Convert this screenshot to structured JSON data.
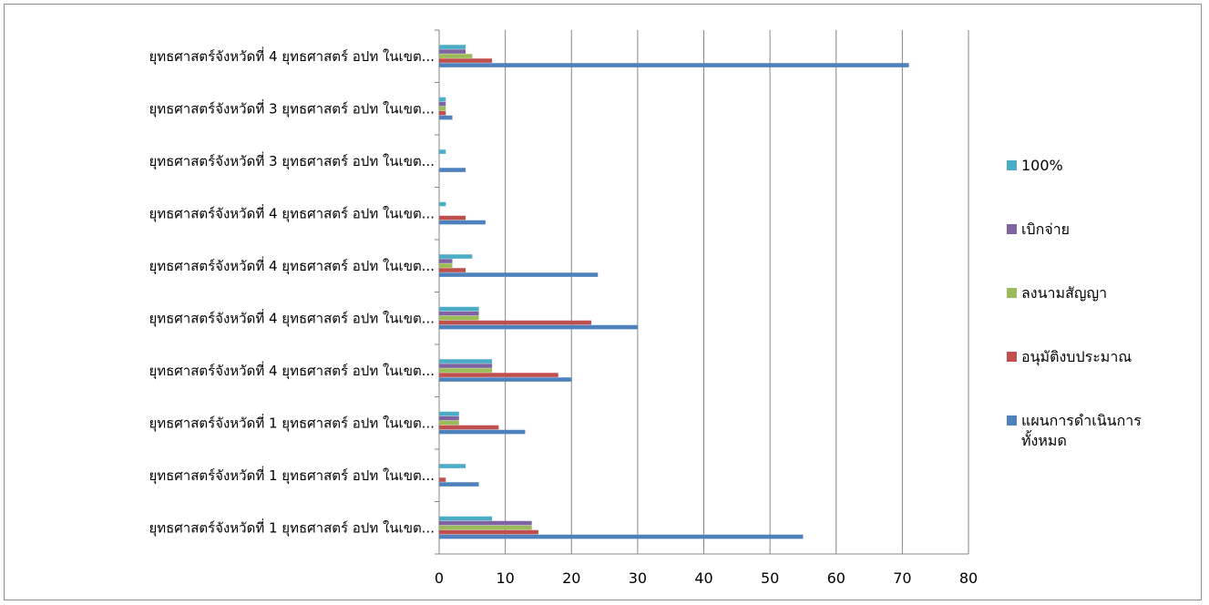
{
  "chart_data": {
    "type": "bar",
    "orientation": "horizontal",
    "categories": [
      "ยุทธศาสตร์จังหวัดที่ 4 ยุทธศาสตร์ อปท ในเขต...",
      "ยุทธศาสตร์จังหวัดที่ 3 ยุทธศาสตร์ อปท ในเขต...",
      "ยุทธศาสตร์จังหวัดที่ 3 ยุทธศาสตร์ อปท ในเขต...",
      "ยุทธศาสตร์จังหวัดที่ 4 ยุทธศาสตร์ อปท ในเขต...",
      "ยุทธศาสตร์จังหวัดที่ 4 ยุทธศาสตร์ อปท ในเขต...",
      "ยุทธศาสตร์จังหวัดที่ 4 ยุทธศาสตร์ อปท ในเขต...",
      "ยุทธศาสตร์จังหวัดที่ 4 ยุทธศาสตร์ อปท ในเขต...",
      "ยุทธศาสตร์จังหวัดที่ 1 ยุทธศาสตร์ อปท ในเขต...",
      "ยุทธศาสตร์จังหวัดที่ 1 ยุทธศาสตร์ อปท ในเขต...",
      "ยุทธศาสตร์จังหวัดที่ 1 ยุทธศาสตร์ อปท ในเขต..."
    ],
    "series": [
      {
        "name": "แผนการดำเนินการทั้งหมด",
        "color": "#4f81bd",
        "values": [
          71,
          2,
          4,
          7,
          24,
          30,
          20,
          13,
          6,
          55
        ]
      },
      {
        "name": "อนุมัติงบประมาณ",
        "color": "#c0504d",
        "values": [
          8,
          1,
          0,
          4,
          4,
          23,
          18,
          9,
          1,
          15
        ]
      },
      {
        "name": "ลงนามสัญญา",
        "color": "#9bbb59",
        "values": [
          5,
          1,
          0,
          0,
          2,
          6,
          8,
          3,
          0,
          14
        ]
      },
      {
        "name": "เบิกจ่าย",
        "color": "#8064a2",
        "values": [
          4,
          1,
          0,
          0,
          2,
          6,
          8,
          3,
          0,
          14
        ]
      },
      {
        "name": "100%",
        "color": "#4bacc6",
        "values": [
          4,
          1,
          1,
          1,
          5,
          6,
          8,
          3,
          4,
          8
        ]
      }
    ],
    "legend_order": [
      "100%",
      "เบิกจ่าย",
      "ลงนามสัญญา",
      "อนุมัติงบประมาณ",
      "แผนการดำเนินการทั้งหมด"
    ],
    "legend_lines": {
      "แผนการดำเนินการทั้งหมด": [
        "แผนการดำเนินการ",
        "ทั้งหมด"
      ]
    },
    "xlim": [
      0,
      80
    ],
    "xticks": [
      "0",
      "10",
      "20",
      "30",
      "40",
      "50",
      "60",
      "70",
      "80"
    ],
    "grid": true,
    "legend_position": "right",
    "title": "",
    "xlabel": "",
    "ylabel": ""
  }
}
